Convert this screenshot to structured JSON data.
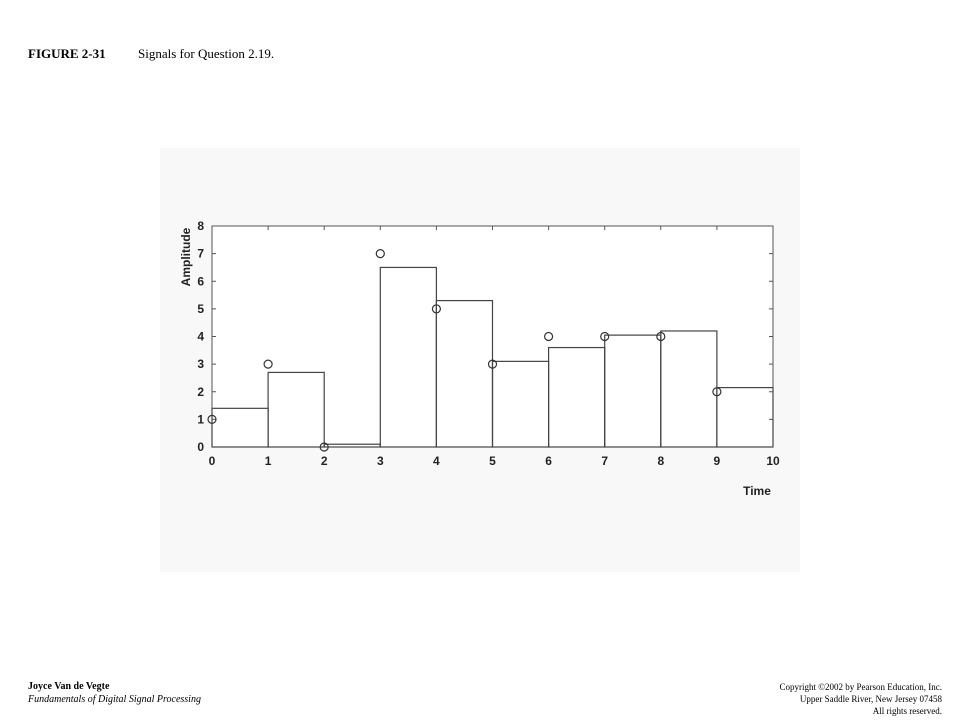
{
  "header": {
    "figure": "FIGURE 2-31",
    "caption": "Signals for Question 2.19."
  },
  "chart_data": {
    "type": "combo",
    "xlabel": "Time",
    "ylabel": "Amplitude",
    "xlim": [
      0,
      10
    ],
    "ylim": [
      0,
      8
    ],
    "xticks": [
      0,
      1,
      2,
      3,
      4,
      5,
      6,
      7,
      8,
      9,
      10
    ],
    "yticks": [
      0,
      1,
      2,
      3,
      4,
      5,
      6,
      7,
      8
    ],
    "grid": false,
    "series": [
      {
        "kind": "marker",
        "color": "#333333",
        "x": [
          0,
          1,
          2,
          3,
          4,
          5,
          6,
          7,
          8,
          9
        ],
        "values": [
          1,
          3,
          0,
          7,
          5,
          3,
          4,
          4,
          4,
          2
        ]
      },
      {
        "kind": "step",
        "color": "#444444",
        "bins": [
          0,
          1,
          2,
          3,
          4,
          5,
          6,
          7,
          8,
          9,
          10
        ],
        "values": [
          1.4,
          2.7,
          0.1,
          6.5,
          5.3,
          3.1,
          3.6,
          4.05,
          4.2,
          2.15
        ]
      }
    ]
  },
  "footer": {
    "author": "Joyce Van de Vegte",
    "book": "Fundamentals of Digital Signal Processing",
    "copyright": [
      "Copyright ©2002 by Pearson Education, Inc.",
      "Upper Saddle River, New Jersey 07458",
      "All rights reserved."
    ]
  }
}
